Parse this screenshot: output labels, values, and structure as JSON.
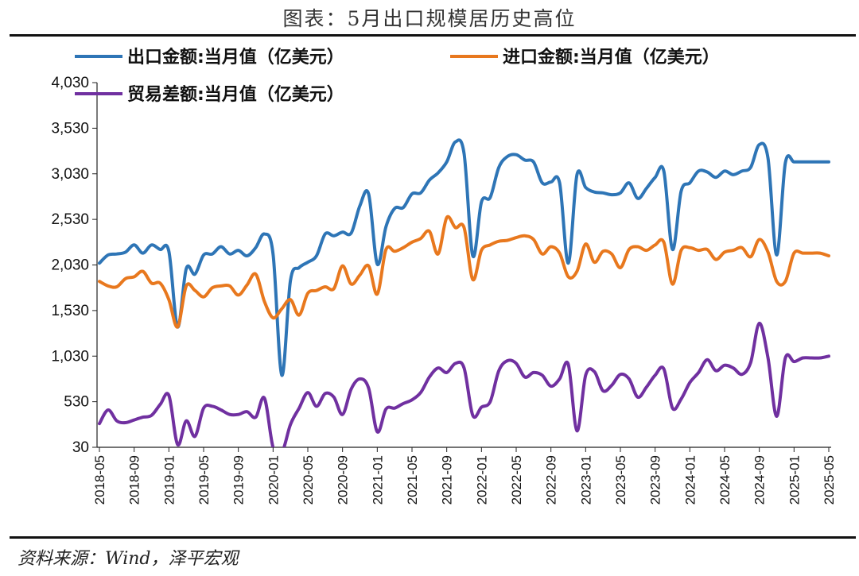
{
  "title": "图表：5月出口规模居历史高位",
  "source": "资料来源：Wind，泽平宏观",
  "chart_data": {
    "type": "line",
    "ylim": [
      30,
      4030
    ],
    "yticks": [
      "4,030",
      "3,530",
      "3,030",
      "2,530",
      "2,030",
      "1,530",
      "1,030",
      "530",
      "30"
    ],
    "ytick_values": [
      4030,
      3530,
      3030,
      2530,
      2030,
      1530,
      1030,
      530,
      30
    ],
    "xtick_labels": [
      "2018-05",
      "2018-09",
      "2019-01",
      "2019-05",
      "2019-09",
      "2020-01",
      "2020-05",
      "2020-09",
      "2021-01",
      "2021-05",
      "2021-09",
      "2022-01",
      "2022-05",
      "2022-09",
      "2023-01",
      "2023-05",
      "2023-09",
      "2024-01",
      "2024-05",
      "2024-09",
      "2025-01",
      "2025-05"
    ],
    "x": [
      "2018-05",
      "2018-06",
      "2018-07",
      "2018-08",
      "2018-09",
      "2018-10",
      "2018-11",
      "2018-12",
      "2019-01",
      "2019-02",
      "2019-03",
      "2019-04",
      "2019-05",
      "2019-06",
      "2019-07",
      "2019-08",
      "2019-09",
      "2019-10",
      "2019-11",
      "2019-12",
      "2020-01",
      "2020-02",
      "2020-03",
      "2020-04",
      "2020-05",
      "2020-06",
      "2020-07",
      "2020-08",
      "2020-09",
      "2020-10",
      "2020-11",
      "2020-12",
      "2021-01",
      "2021-02",
      "2021-03",
      "2021-04",
      "2021-05",
      "2021-06",
      "2021-07",
      "2021-08",
      "2021-09",
      "2021-10",
      "2021-11",
      "2021-12",
      "2022-01",
      "2022-02",
      "2022-03",
      "2022-04",
      "2022-05",
      "2022-06",
      "2022-07",
      "2022-08",
      "2022-09",
      "2022-10",
      "2022-11",
      "2022-12",
      "2023-01",
      "2023-02",
      "2023-03",
      "2023-04",
      "2023-05",
      "2023-06",
      "2023-07",
      "2023-08",
      "2023-09",
      "2023-10",
      "2023-11",
      "2023-12",
      "2024-01",
      "2024-02",
      "2024-03",
      "2024-04",
      "2024-05",
      "2024-06",
      "2024-07",
      "2024-08",
      "2024-09",
      "2024-10",
      "2024-11",
      "2024-12",
      "2025-01",
      "2025-02",
      "2025-03",
      "2025-04",
      "2025-05"
    ],
    "series": [
      {
        "name": "出口金额:当月值（亿美元）",
        "color": "#2e75b6",
        "values": [
          2050,
          2140,
          2150,
          2170,
          2250,
          2160,
          2250,
          2200,
          2180,
          1350,
          1990,
          1930,
          2140,
          2150,
          2230,
          2150,
          2190,
          2130,
          2220,
          2370,
          2150,
          820,
          1860,
          2000,
          2060,
          2130,
          2370,
          2350,
          2390,
          2380,
          2680,
          2810,
          2040,
          2450,
          2650,
          2660,
          2810,
          2820,
          2960,
          3040,
          3160,
          3380,
          3250,
          2130,
          2720,
          2770,
          3100,
          3220,
          3240,
          3180,
          3160,
          2930,
          2940,
          2930,
          2050,
          3020,
          2880,
          2830,
          2820,
          2800,
          2820,
          2930,
          2760,
          2870,
          2990,
          3060,
          2200,
          2840,
          2930,
          3060,
          3050,
          2990,
          3060,
          3020,
          3060,
          3100,
          3350,
          3200,
          2140,
          3150,
          3160,
          3160,
          3160,
          3160,
          3160
        ]
      },
      {
        "name": "进口金额:当月值（亿美元）",
        "color": "#e8781e",
        "values": [
          1850,
          1800,
          1790,
          1880,
          1900,
          1960,
          1830,
          1830,
          1650,
          1350,
          1800,
          1750,
          1680,
          1780,
          1800,
          1800,
          1700,
          1810,
          1930,
          1630,
          1450,
          1550,
          1650,
          1480,
          1720,
          1750,
          1790,
          1770,
          2020,
          1820,
          1920,
          2020,
          1710,
          2200,
          2180,
          2220,
          2280,
          2320,
          2400,
          2150,
          2550,
          2440,
          2440,
          1870,
          2190,
          2250,
          2290,
          2300,
          2330,
          2350,
          2310,
          2150,
          2230,
          2160,
          1900,
          1960,
          2260,
          2060,
          2180,
          2150,
          2000,
          2200,
          2230,
          2190,
          2250,
          2280,
          1820,
          2190,
          2220,
          2190,
          2200,
          2090,
          2170,
          2190,
          2220,
          2120,
          2310,
          2170,
          1850,
          1850,
          2160,
          2160,
          2160,
          2160,
          2130
        ]
      },
      {
        "name": "贸易差额:当月值（亿美元）",
        "color": "#7030a0",
        "values": [
          290,
          440,
          320,
          300,
          330,
          360,
          380,
          500,
          600,
          60,
          320,
          150,
          460,
          480,
          440,
          390,
          390,
          420,
          360,
          570,
          30,
          -30,
          280,
          460,
          630,
          480,
          620,
          580,
          390,
          670,
          780,
          680,
          200,
          450,
          460,
          510,
          550,
          630,
          800,
          900,
          850,
          950,
          900,
          380,
          470,
          530,
          870,
          980,
          950,
          800,
          850,
          820,
          700,
          780,
          940,
          210,
          820,
          860,
          650,
          710,
          830,
          780,
          580,
          690,
          820,
          890,
          460,
          560,
          740,
          850,
          990,
          870,
          930,
          900,
          830,
          960,
          1390,
          1010,
          370,
          1010,
          970,
          1010,
          1010,
          1010,
          1030
        ]
      }
    ]
  }
}
